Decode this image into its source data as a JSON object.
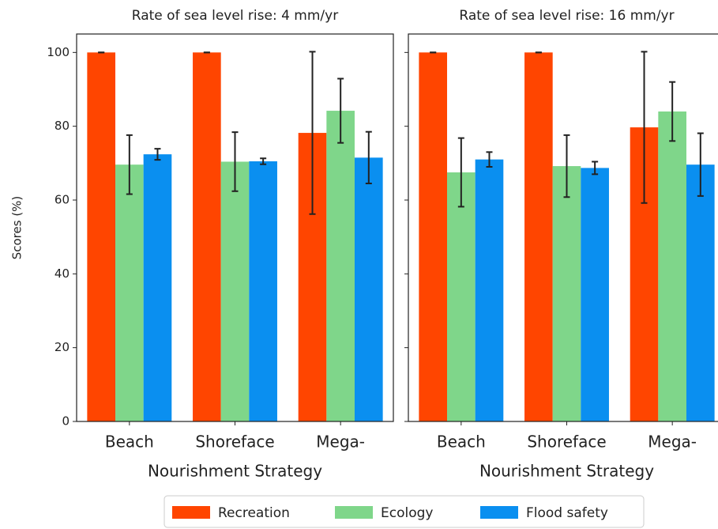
{
  "chart_data": [
    {
      "type": "bar",
      "title": "Rate of sea level rise: 4 mm/yr",
      "xlabel": "Nourishment Strategy",
      "ylabel": "Scores (%)",
      "categories": [
        "Beach",
        "Shoreface",
        "Mega-"
      ],
      "ylim": [
        0,
        105
      ],
      "yticks": [
        0,
        20,
        40,
        60,
        80,
        100
      ],
      "series": [
        {
          "name": "Recreation",
          "color": "#ff4500",
          "values": [
            100,
            100,
            78.2
          ],
          "errors": [
            0,
            0,
            22
          ]
        },
        {
          "name": "Ecology",
          "color": "#7fd68a",
          "values": [
            69.6,
            70.4,
            84.2
          ],
          "errors": [
            8,
            8,
            8.7
          ]
        },
        {
          "name": "Flood safety",
          "color": "#0a8ff0",
          "values": [
            72.4,
            70.5,
            71.5
          ],
          "errors": [
            1.5,
            0.8,
            7
          ]
        }
      ]
    },
    {
      "type": "bar",
      "title": "Rate of sea level rise: 16 mm/yr",
      "xlabel": "Nourishment Strategy",
      "sharey": true,
      "categories": [
        "Beach",
        "Shoreface",
        "Mega-"
      ],
      "ylim": [
        0,
        105
      ],
      "yticks": [
        0,
        20,
        40,
        60,
        80,
        100
      ],
      "series": [
        {
          "color": "#ff4500",
          "values": [
            100,
            100,
            79.7
          ],
          "errors": [
            0,
            0,
            20.5
          ]
        },
        {
          "color": "#7fd68a",
          "values": [
            67.5,
            69.2,
            84
          ],
          "errors": [
            9.3,
            8.4,
            8
          ]
        },
        {
          "color": "#0a8ff0",
          "values": [
            71,
            68.7,
            69.6
          ],
          "errors": [
            2,
            1.7,
            8.5
          ]
        }
      ]
    }
  ]
}
